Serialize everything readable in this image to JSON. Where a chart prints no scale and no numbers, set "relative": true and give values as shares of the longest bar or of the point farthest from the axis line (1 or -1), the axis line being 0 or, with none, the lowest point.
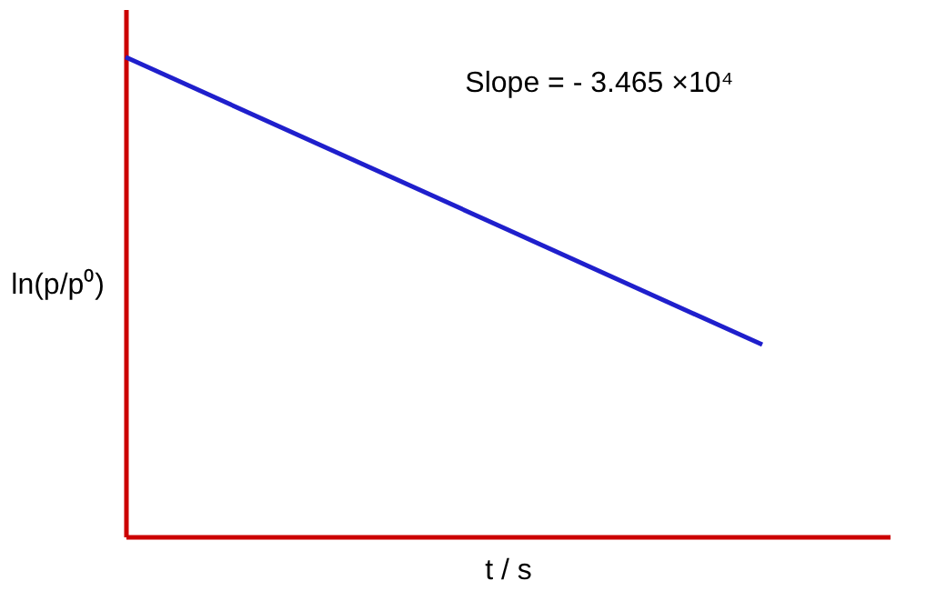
{
  "chart_data": {
    "type": "line",
    "relative": true,
    "categories": [
      null,
      null
    ],
    "series": [
      {
        "color": "#1f1fcc",
        "values": [
          1,
          0.4
        ]
      }
    ],
    "xlabel": "t / s",
    "ylabel": "ln(p/p⁰)",
    "annotations": [
      "Slope = - 3.465 ×10⁴"
    ],
    "grid": false,
    "marker": "none",
    "line_style": "solid"
  }
}
